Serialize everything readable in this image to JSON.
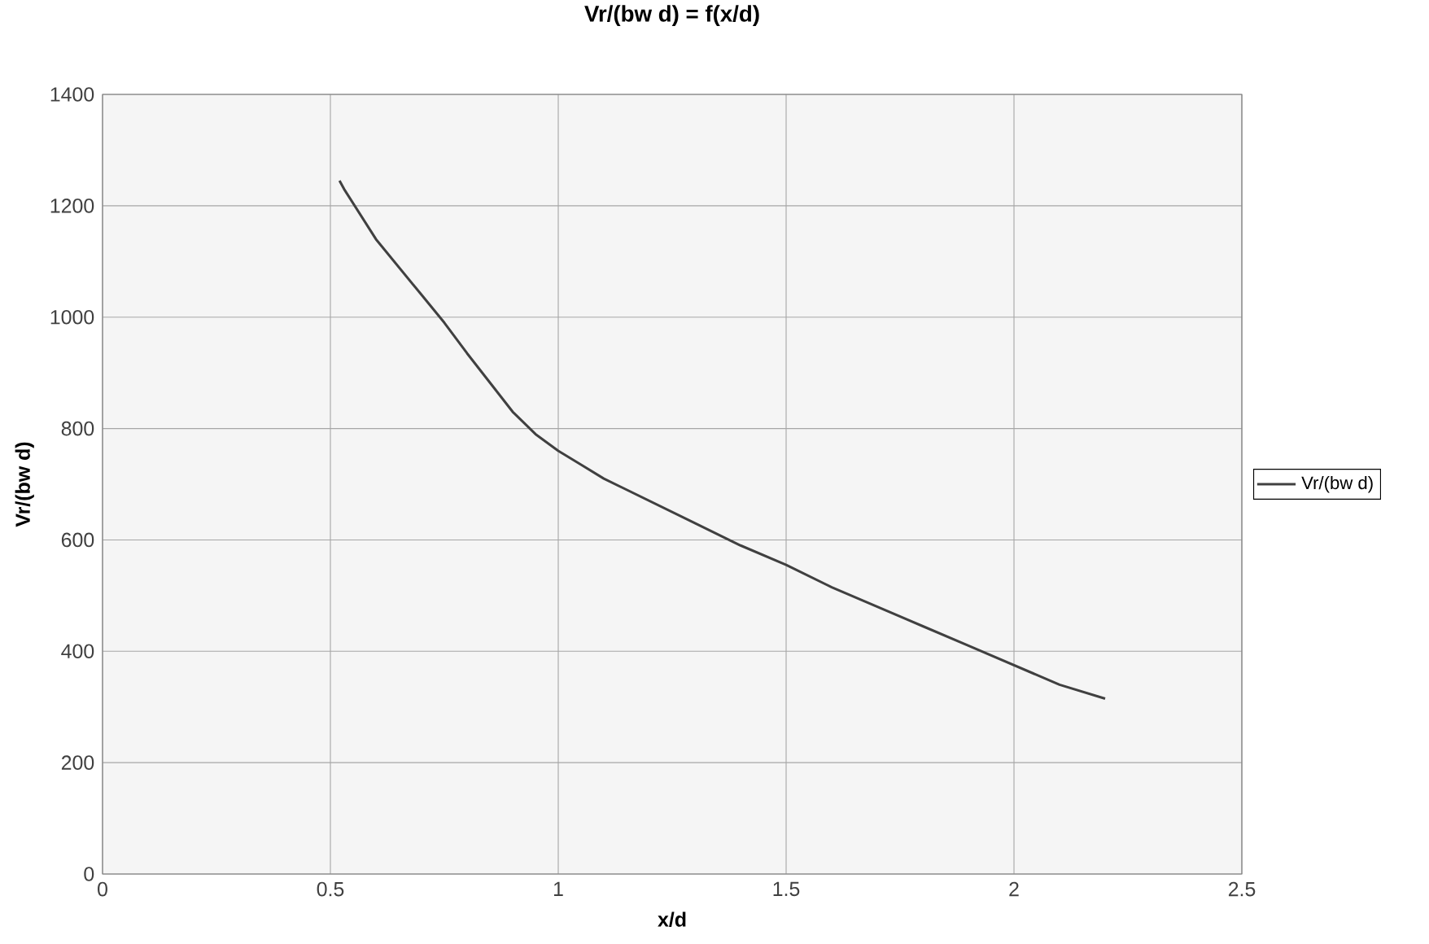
{
  "chart_data": {
    "type": "line",
    "title": "Vr/(bw d) = f(x/d)",
    "xlabel": "x/d",
    "ylabel": "Vr/(bw d)",
    "xlim": [
      0,
      2.5
    ],
    "xticks": [
      0,
      0.5,
      1,
      1.5,
      2,
      2.5
    ],
    "ylim": [
      0,
      1400
    ],
    "yticks": [
      0,
      200,
      400,
      600,
      800,
      1000,
      1200,
      1400
    ],
    "grid": true,
    "legend": "right",
    "marker": "none",
    "line_style": "solid",
    "series": [
      {
        "name": "Vr/(bw d)",
        "color": "#404040",
        "x": [
          0.52,
          0.53,
          0.6,
          0.7,
          0.75,
          0.8,
          0.9,
          0.95,
          1.0,
          1.05,
          1.1,
          1.2,
          1.3,
          1.4,
          1.5,
          1.6,
          1.7,
          1.8,
          1.9,
          2.0,
          2.1,
          2.2
        ],
        "values": [
          1245,
          1230,
          1140,
          1040,
          990,
          935,
          830,
          790,
          760,
          735,
          710,
          670,
          630,
          590,
          555,
          515,
          480,
          445,
          410,
          375,
          340,
          315
        ]
      }
    ]
  }
}
